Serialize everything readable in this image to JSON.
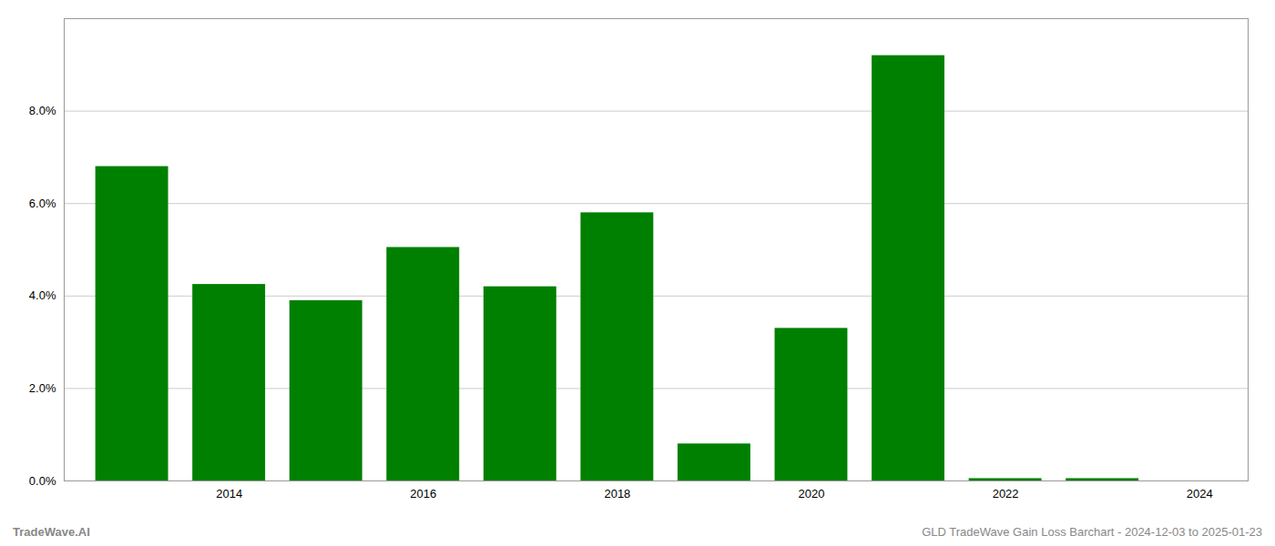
{
  "chart_data": {
    "type": "bar",
    "x": [
      2013,
      2014,
      2015,
      2016,
      2017,
      2018,
      2019,
      2020,
      2021,
      2022,
      2023
    ],
    "values": [
      0.068,
      0.0425,
      0.039,
      0.0505,
      0.042,
      0.058,
      0.008,
      0.033,
      0.092,
      0.0005,
      0.0005
    ],
    "color": "#008000",
    "xlim": [
      2012.3,
      2024.5
    ],
    "xticks": [
      2014,
      2016,
      2018,
      2020,
      2022,
      2024
    ],
    "ylim": [
      0,
      0.1
    ],
    "yticks": [
      {
        "value": 0.0,
        "label": "0.0%"
      },
      {
        "value": 0.02,
        "label": "2.0%"
      },
      {
        "value": 0.04,
        "label": "4.0%"
      },
      {
        "value": 0.06,
        "label": "6.0%"
      },
      {
        "value": 0.08,
        "label": "8.0%"
      }
    ],
    "grid": true,
    "annotations": [
      "TradeWave.AI",
      "GLD TradeWave Gain Loss Barchart - 2024-12-03 to 2025-01-23"
    ]
  }
}
